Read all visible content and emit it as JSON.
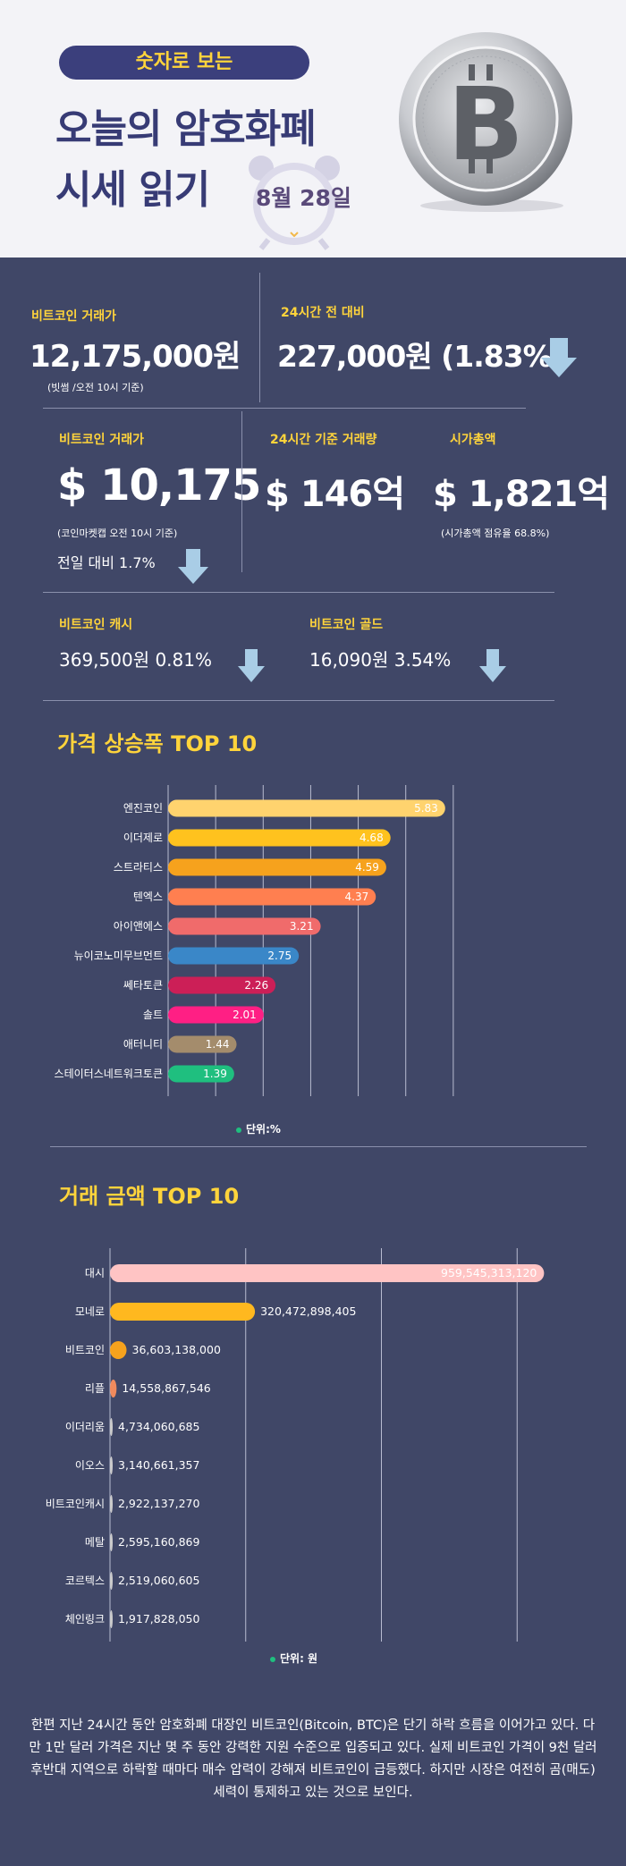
{
  "header": {
    "pill": "숫자로 보는",
    "title_line1": "오늘의 암호화폐",
    "title_line2": "시세 읽기",
    "date": "8월 28일"
  },
  "stats": {
    "btc_krw_label": "비트코인 거래가",
    "btc_krw_value": "12,175,000원",
    "btc_krw_note": "(빗썸 /오전  10시 기준)",
    "change_label": "24시간 전 대비",
    "change_value": "227,000원 (1.83%)",
    "btc_usd_label": "비트코인 거래가",
    "btc_usd_value": "$ 10,175",
    "btc_usd_note": "(코인마켓캡 오전 10시  기준)",
    "btc_usd_change": "전일 대비 1.7%",
    "volume_label": "24시간 기준 거래량",
    "volume_value": "$ 146억",
    "mcap_label": "시가총액",
    "mcap_value": "$ 1,821억",
    "mcap_note": "(시가총액 점유율 68.8%)",
    "bch_label": "비트코인 캐시",
    "bch_value": "369,500원  0.81%",
    "btg_label": "비트코인 골드",
    "btg_value": "16,090원   3.54%"
  },
  "colors": {
    "background": "#404767",
    "accent": "#ffd43b",
    "arrow": "#a9cde6"
  },
  "chart1_title": "가격 상승폭 TOP 10",
  "chart1_unit": "단위:%",
  "chart2_title": "거래 금액 TOP 10",
  "chart2_unit": "단위: 원",
  "body_text": "한편 지난 24시간 동안 암호화폐 대장인 비트코인(Bitcoin, BTC)은 단기 하락 흐름을 이어가고 있다. 다만 1만 달러 가격은 지난 몇 주 동안 강력한 지원 수준으로 입증되고 있다. 실제 비트코인 가격이 9천 달러 후반대 지역으로 하락할 때마다 매수 압력이 강해져 비트코인이 급등했다. 하지만 시장은 여전히 곰(매도) 세력이 통제하고 있는 것으로 보인다.",
  "chart_data": [
    {
      "type": "bar",
      "orientation": "horizontal",
      "title": "가격 상승폭 TOP 10",
      "unit": "단위:%",
      "categories": [
        "엔진코인",
        "이더제로",
        "스트라티스",
        "텐엑스",
        "아이앤에스",
        "뉴이코노미무브먼트",
        "쎄타토큰",
        "솔트",
        "애터니티",
        "스테이터스네트워크토큰"
      ],
      "values": [
        5.83,
        4.68,
        4.59,
        4.37,
        3.21,
        2.75,
        2.26,
        2.01,
        1.44,
        1.39
      ],
      "labels": [
        "5.83",
        "4.68",
        "4.59",
        "4.37",
        "3.21",
        "2.75",
        "2.26",
        "2.01",
        "1.44",
        "1.39"
      ],
      "bar_colors": [
        "#ffd36e",
        "#ffc21e",
        "#f6a21d",
        "#ff7f50",
        "#f06b6b",
        "#3a87c8",
        "#cc1f57",
        "#ff1f84",
        "#a48c6c",
        "#1fbf7f"
      ],
      "xlim": [
        0,
        7
      ],
      "grid": true
    },
    {
      "type": "bar",
      "orientation": "horizontal",
      "title": "거래 금액 TOP 10",
      "unit": "단위: 원",
      "categories": [
        "대시",
        "모네로",
        "비트코인",
        "리플",
        "이더리움",
        "이오스",
        "비트코인캐시",
        "메탈",
        "코르텍스",
        "체인링크"
      ],
      "values": [
        959545313120,
        320472898405,
        36603138000,
        14558867546,
        4734060685,
        3140661357,
        2922137270,
        2595160869,
        2519060605,
        1917828050
      ],
      "labels": [
        "959,545,313,120",
        "320,472,898,405",
        "36,603,138,000",
        "14,558,867,546",
        "4,734,060,685",
        "3,140,661,357",
        "2,922,137,270",
        "2,595,160,869",
        "2,519,060,605",
        "1,917,828,050"
      ],
      "bar_colors": [
        "#ffc4c4",
        "#ffb81f",
        "#f6a21d",
        "#f08a5d",
        "#cccccc",
        "#cccccc",
        "#cccccc",
        "#cccccc",
        "#cccccc",
        "#cccccc"
      ],
      "xlim": [
        0,
        1200000000000
      ],
      "grid": true
    }
  ]
}
